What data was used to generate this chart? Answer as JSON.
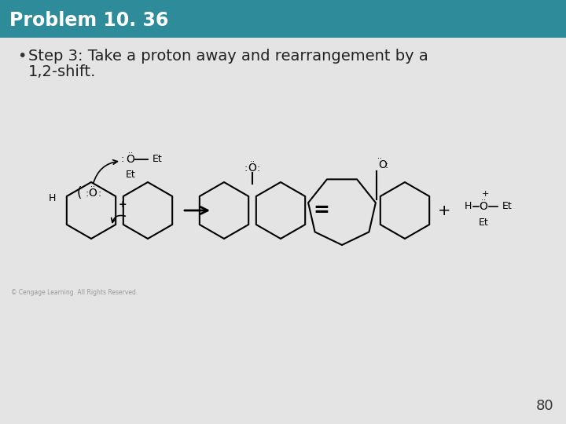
{
  "title": "Problem 10. 36",
  "title_bg_color": "#2e8b9a",
  "title_text_color": "#ffffff",
  "body_bg_color": "#e4e4e4",
  "bullet_text_line1": "Step 3: Take a proton away and rearrangement by a",
  "bullet_text_line2": "1,2-shift.",
  "page_number": "80",
  "footer_text": "© Cengage Learning. All Rights Reserved.",
  "title_fontsize": 17,
  "bullet_fontsize": 14,
  "page_num_fontsize": 13
}
